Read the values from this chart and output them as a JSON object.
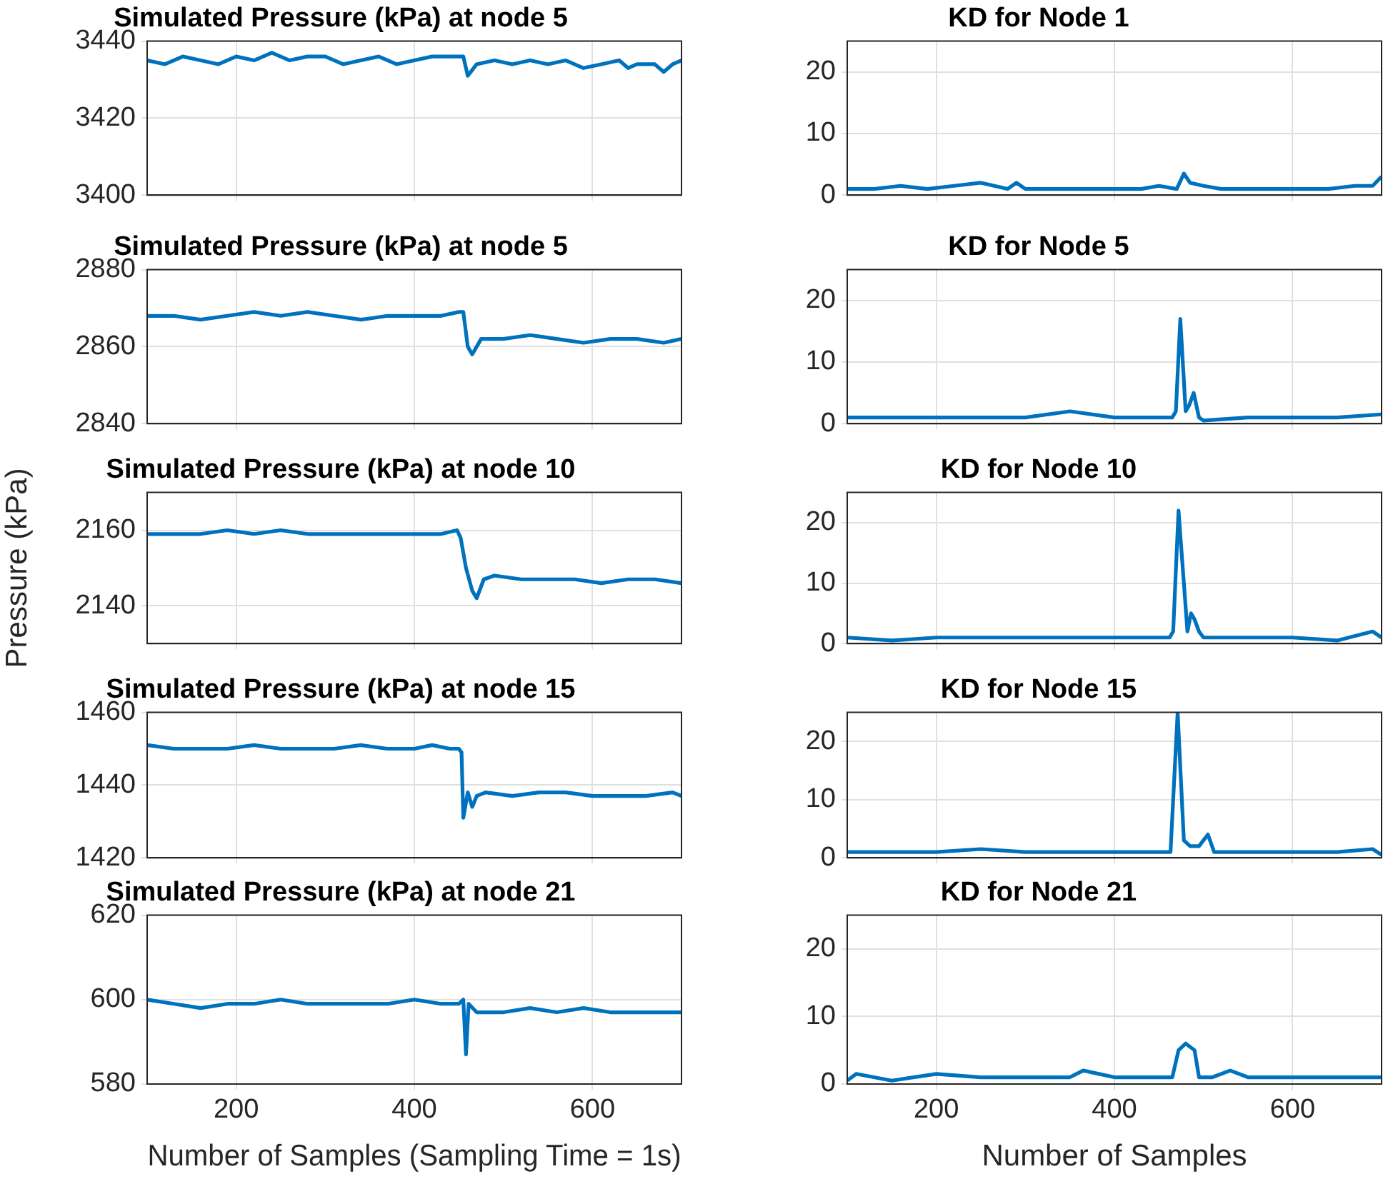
{
  "chart_data": [
    {
      "type": "line",
      "title": "Simulated Pressure (kPa) at node 5",
      "color": "#0072bd",
      "xlim": [
        100,
        700
      ],
      "xticks": [
        200,
        400,
        600
      ],
      "ylim": [
        3400,
        3440
      ],
      "yticks": [
        3400,
        3420,
        3440
      ],
      "grid": true,
      "tick_labels": "y",
      "x": [
        100,
        120,
        140,
        160,
        180,
        200,
        220,
        240,
        260,
        280,
        300,
        320,
        340,
        360,
        380,
        400,
        420,
        440,
        455,
        460,
        470,
        490,
        510,
        530,
        550,
        570,
        590,
        610,
        630,
        640,
        650,
        670,
        680,
        690,
        700
      ],
      "values": [
        3435,
        3434,
        3436,
        3435,
        3434,
        3436,
        3435,
        3437,
        3435,
        3436,
        3436,
        3434,
        3435,
        3436,
        3434,
        3435,
        3436,
        3436,
        3436,
        3431,
        3434,
        3435,
        3434,
        3435,
        3434,
        3435,
        3433,
        3434,
        3435,
        3433,
        3434,
        3434,
        3432,
        3434,
        3435
      ]
    },
    {
      "type": "line",
      "title": "KD for Node 1",
      "color": "#0072bd",
      "xlim": [
        100,
        700
      ],
      "xticks": [
        200,
        400,
        600
      ],
      "ylim": [
        0,
        25
      ],
      "yticks": [
        0,
        10,
        20
      ],
      "grid": true,
      "tick_labels": "y",
      "x": [
        100,
        130,
        160,
        190,
        220,
        250,
        280,
        290,
        300,
        320,
        350,
        380,
        400,
        430,
        450,
        470,
        478,
        485,
        500,
        520,
        550,
        580,
        610,
        640,
        670,
        690,
        700
      ],
      "values": [
        1,
        1,
        1.5,
        1,
        1.5,
        2,
        1,
        2,
        1,
        1,
        1,
        1,
        1,
        1,
        1.5,
        1,
        3.5,
        2,
        1.5,
        1,
        1,
        1,
        1,
        1,
        1.5,
        1.5,
        3
      ]
    },
    {
      "type": "line",
      "title": "Simulated Pressure (kPa) at node 5",
      "color": "#0072bd",
      "xlim": [
        100,
        700
      ],
      "xticks": [
        200,
        400,
        600
      ],
      "ylim": [
        2840,
        2880
      ],
      "yticks": [
        2840,
        2860,
        2880
      ],
      "grid": true,
      "tick_labels": "y",
      "x": [
        100,
        130,
        160,
        190,
        220,
        250,
        280,
        310,
        340,
        370,
        400,
        430,
        450,
        455,
        460,
        465,
        475,
        500,
        530,
        560,
        590,
        620,
        650,
        680,
        700
      ],
      "values": [
        2868,
        2868,
        2867,
        2868,
        2869,
        2868,
        2869,
        2868,
        2867,
        2868,
        2868,
        2868,
        2869,
        2869,
        2860,
        2858,
        2862,
        2862,
        2863,
        2862,
        2861,
        2862,
        2862,
        2861,
        2862
      ]
    },
    {
      "type": "line",
      "title": "KD for Node 5",
      "color": "#0072bd",
      "xlim": [
        100,
        700
      ],
      "xticks": [
        200,
        400,
        600
      ],
      "ylim": [
        0,
        25
      ],
      "yticks": [
        0,
        10,
        20
      ],
      "grid": true,
      "tick_labels": "y",
      "x": [
        100,
        150,
        200,
        250,
        300,
        350,
        400,
        450,
        465,
        469,
        474,
        480,
        484,
        489,
        495,
        500,
        550,
        600,
        650,
        700
      ],
      "values": [
        1,
        1,
        1,
        1,
        1,
        2,
        1,
        1,
        1,
        2,
        17,
        2,
        3,
        5,
        1,
        0.5,
        1,
        1,
        1,
        1.5
      ]
    },
    {
      "type": "line",
      "title": "Simulated Pressure (kPa) at node 10",
      "ylabel": "Pressure (kPa)",
      "color": "#0072bd",
      "xlim": [
        100,
        700
      ],
      "xticks": [
        200,
        400,
        600
      ],
      "ylim": [
        2130,
        2170
      ],
      "yticks": [
        2140,
        2160
      ],
      "grid": true,
      "tick_labels": "y",
      "x": [
        100,
        130,
        160,
        190,
        220,
        250,
        280,
        310,
        340,
        370,
        400,
        430,
        448,
        452,
        458,
        465,
        470,
        478,
        490,
        520,
        550,
        580,
        610,
        640,
        670,
        700
      ],
      "values": [
        2159,
        2159,
        2159,
        2160,
        2159,
        2160,
        2159,
        2159,
        2159,
        2159,
        2159,
        2159,
        2160,
        2158,
        2150,
        2144,
        2142,
        2147,
        2148,
        2147,
        2147,
        2147,
        2146,
        2147,
        2147,
        2146
      ]
    },
    {
      "type": "line",
      "title": "KD for Node 10",
      "color": "#0072bd",
      "xlim": [
        100,
        700
      ],
      "xticks": [
        200,
        400,
        600
      ],
      "ylim": [
        0,
        25
      ],
      "yticks": [
        0,
        10,
        20
      ],
      "grid": true,
      "tick_labels": "y",
      "x": [
        100,
        150,
        200,
        250,
        300,
        350,
        400,
        450,
        462,
        466,
        472,
        478,
        482,
        486,
        490,
        495,
        500,
        550,
        600,
        650,
        690,
        700
      ],
      "values": [
        1,
        0.5,
        1,
        1,
        1,
        1,
        1,
        1,
        1,
        2,
        22,
        10,
        2,
        5,
        4,
        2,
        1,
        1,
        1,
        0.5,
        2,
        1
      ]
    },
    {
      "type": "line",
      "title": "Simulated Pressure (kPa) at node 15",
      "color": "#0072bd",
      "xlim": [
        100,
        700
      ],
      "xticks": [
        200,
        400,
        600
      ],
      "ylim": [
        1420,
        1460
      ],
      "yticks": [
        1420,
        1440,
        1460
      ],
      "grid": true,
      "tick_labels": "y",
      "x": [
        100,
        130,
        160,
        190,
        220,
        250,
        280,
        310,
        340,
        370,
        400,
        420,
        440,
        450,
        453,
        455,
        460,
        465,
        470,
        480,
        510,
        540,
        570,
        600,
        630,
        660,
        690,
        700
      ],
      "values": [
        1451,
        1450,
        1450,
        1450,
        1451,
        1450,
        1450,
        1450,
        1451,
        1450,
        1450,
        1451,
        1450,
        1450,
        1449,
        1431,
        1438,
        1434,
        1437,
        1438,
        1437,
        1438,
        1438,
        1437,
        1437,
        1437,
        1438,
        1437
      ]
    },
    {
      "type": "line",
      "title": "KD for Node 15",
      "color": "#0072bd",
      "xlim": [
        100,
        700
      ],
      "xticks": [
        200,
        400,
        600
      ],
      "ylim": [
        0,
        25
      ],
      "yticks": [
        0,
        10,
        20
      ],
      "grid": true,
      "tick_labels": "y",
      "x": [
        100,
        150,
        200,
        250,
        300,
        350,
        400,
        450,
        463,
        471,
        478,
        485,
        495,
        505,
        512,
        550,
        600,
        650,
        690,
        700
      ],
      "values": [
        1,
        1,
        1,
        1.5,
        1,
        1,
        1,
        1,
        1,
        25,
        3,
        2,
        2,
        4,
        1,
        1,
        1,
        1,
        1.5,
        0.5
      ]
    },
    {
      "type": "line",
      "title": "Simulated Pressure (kPa) at node 21",
      "xlabel": "Number of Samples (Sampling Time = 1s)",
      "color": "#0072bd",
      "xlim": [
        100,
        700
      ],
      "xticks": [
        200,
        400,
        600
      ],
      "ylim": [
        580,
        620
      ],
      "yticks": [
        580,
        600,
        620
      ],
      "grid": true,
      "x": [
        100,
        130,
        160,
        190,
        220,
        250,
        280,
        310,
        340,
        370,
        400,
        430,
        450,
        455,
        458,
        461,
        470,
        500,
        530,
        560,
        590,
        620,
        650,
        680,
        700
      ],
      "values": [
        600,
        599,
        598,
        599,
        599,
        600,
        599,
        599,
        599,
        599,
        600,
        599,
        599,
        600,
        587,
        599,
        597,
        597,
        598,
        597,
        598,
        597,
        597,
        597,
        597
      ]
    },
    {
      "type": "line",
      "title": "KD for Node 21",
      "xlabel": "Number of Samples",
      "color": "#0072bd",
      "xlim": [
        100,
        700
      ],
      "xticks": [
        200,
        400,
        600
      ],
      "ylim": [
        0,
        25
      ],
      "yticks": [
        0,
        10,
        20
      ],
      "grid": true,
      "x": [
        100,
        110,
        150,
        200,
        250,
        300,
        350,
        365,
        400,
        450,
        465,
        472,
        480,
        490,
        495,
        510,
        530,
        550,
        600,
        650,
        700
      ],
      "values": [
        0.5,
        1.5,
        0.5,
        1.5,
        1,
        1,
        1,
        2,
        1,
        1,
        1,
        5,
        6,
        5,
        1,
        1,
        2,
        1,
        1,
        1,
        1
      ]
    }
  ]
}
